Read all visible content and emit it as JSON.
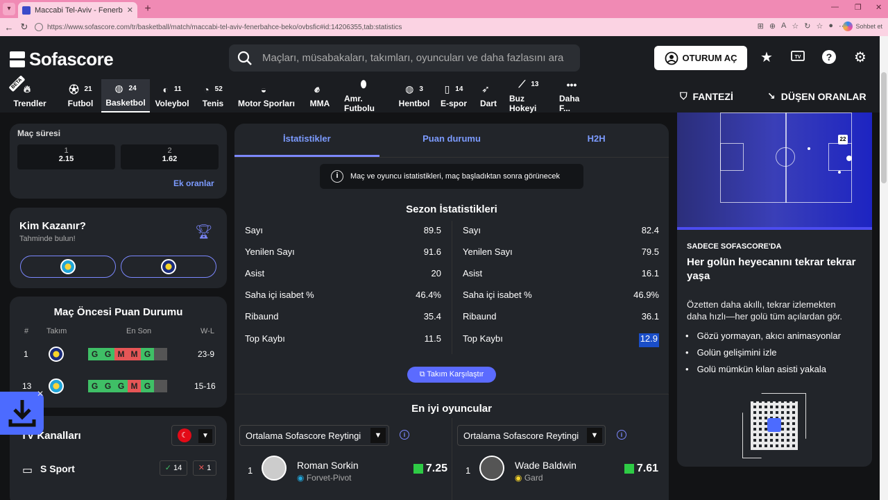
{
  "browser": {
    "tab_title": "Maccabi Tel-Aviv - Fenerbahçe sk",
    "url": "https://www.sofascore.com/tr/basketball/match/maccabi-tel-aviv-fenerbahce-beko/ovbsfic#id:14206355,tab:statistics",
    "copilot_label": "Sohbet et"
  },
  "header": {
    "logo": "Sofascore",
    "search_placeholder": "Maçları, müsabakaları, takımları, oyuncuları ve daha fazlasını ara",
    "login_label": "OTURUM AÇ",
    "fantasy_label": "FANTEZİ",
    "odds_label": "DÜŞEN ORANLAR",
    "beta_label": "BETA",
    "sports": [
      {
        "label": "Trendler",
        "count": ""
      },
      {
        "label": "Futbol",
        "count": "21"
      },
      {
        "label": "Basketbol",
        "count": "24"
      },
      {
        "label": "Voleybol",
        "count": "11"
      },
      {
        "label": "Tenis",
        "count": "52"
      },
      {
        "label": "Motor Sporları",
        "count": ""
      },
      {
        "label": "MMA",
        "count": ""
      },
      {
        "label": "Amr. Futbolu",
        "count": ""
      },
      {
        "label": "Hentbol",
        "count": "3"
      },
      {
        "label": "E-spor",
        "count": "14"
      },
      {
        "label": "Dart",
        "count": ""
      },
      {
        "label": "Buz Hokeyi",
        "count": "13"
      },
      {
        "label": "Daha F...",
        "count": ""
      }
    ]
  },
  "odds": {
    "title": "Maç süresi",
    "options": [
      {
        "n": "1",
        "v": "2.15"
      },
      {
        "n": "2",
        "v": "1.62"
      }
    ],
    "more_link": "Ek oranlar"
  },
  "who_wins": {
    "title": "Kim Kazanır?",
    "subtitle": "Tahminde bulun!"
  },
  "standings": {
    "title": "Maç Öncesi Puan Durumu",
    "headers": {
      "pos": "#",
      "team": "Takım",
      "form": "En Son",
      "wl": "W-L"
    },
    "rows": [
      {
        "pos": "1",
        "form": [
          "G",
          "G",
          "M",
          "M",
          "G"
        ],
        "wl": "23-9"
      },
      {
        "pos": "13",
        "form": [
          "G",
          "G",
          "G",
          "M",
          "G"
        ],
        "wl": "15-16"
      }
    ]
  },
  "tv": {
    "title": "TV Kanalları",
    "channel": "S Sport",
    "yes": "14",
    "no": "1"
  },
  "main": {
    "tabs": [
      "İstatistikler",
      "Puan durumu",
      "H2H"
    ],
    "info": "Maç ve oyuncu istatistikleri, maç başladıktan sonra görünecek",
    "season_title": "Sezon İstatistikleri",
    "home_stats": [
      {
        "label": "Sayı",
        "value": "89.5"
      },
      {
        "label": "Yenilen Sayı",
        "value": "91.6"
      },
      {
        "label": "Asist",
        "value": "20"
      },
      {
        "label": "Saha içi isabet %",
        "value": "46.4%"
      },
      {
        "label": "Ribaund",
        "value": "35.4"
      },
      {
        "label": "Top Kaybı",
        "value": "11.5"
      }
    ],
    "away_stats": [
      {
        "label": "Sayı",
        "value": "82.4"
      },
      {
        "label": "Yenilen Sayı",
        "value": "79.5"
      },
      {
        "label": "Asist",
        "value": "16.1"
      },
      {
        "label": "Saha içi isabet %",
        "value": "46.9%"
      },
      {
        "label": "Ribaund",
        "value": "36.1"
      },
      {
        "label": "Top Kaybı",
        "value": "12.9"
      }
    ],
    "compare_label": "Takım Karşılaştır",
    "best_title": "En iyi oyuncular",
    "select_label": "Ortalama Sofascore Reytingi",
    "players": [
      {
        "rank": "1",
        "name": "Roman Sorkin",
        "pos": "Forvet-Pivot",
        "rating": "7.25"
      },
      {
        "rank": "1",
        "name": "Wade Baldwin",
        "pos": "Gard",
        "rating": "7.61"
      }
    ]
  },
  "promo": {
    "kicker": "SADECE SOFASCORE'DA",
    "title": "Her golün heyecanını tekrar tekrar yaşa",
    "desc": "Özetten daha akıllı, tekrar izlemekten daha hızlı—her golü tüm açılardan gör.",
    "bullets": [
      "Gözü yormayan, akıcı animasyonlar",
      "Golün gelişimini izle",
      "Golü mümkün kılan asisti yakala"
    ],
    "player_number": "22"
  }
}
